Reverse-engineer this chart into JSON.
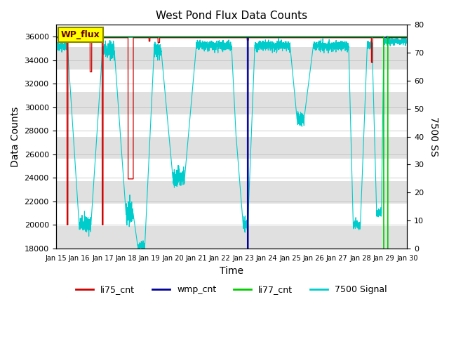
{
  "title": "West Pond Flux Data Counts",
  "xlabel": "Time",
  "ylabel_left": "Data Counts",
  "ylabel_right": "7500 SS",
  "ylim_left": [
    18000,
    37000
  ],
  "ylim_right": [
    0,
    80
  ],
  "x_tick_labels": [
    "Jan 15",
    "Jan 16",
    "Jan 17",
    "Jan 18",
    "Jan 19",
    "Jan 20",
    "Jan 21",
    "Jan 22",
    "Jan 23",
    "Jan 24",
    "Jan 25",
    "Jan 26",
    "Jan 27",
    "Jan 28",
    "Jan 29",
    "Jan 30"
  ],
  "background_color": "#ffffff",
  "annotation_text": "WP_flux",
  "colors": {
    "li75_cnt": "#cc0000",
    "wmp_cnt": "#000099",
    "li77_cnt": "#00cc00",
    "signal_7500": "#00cccc"
  },
  "legend_labels": [
    "li75_cnt",
    "wmp_cnt",
    "li77_cnt",
    "7500 Signal"
  ]
}
